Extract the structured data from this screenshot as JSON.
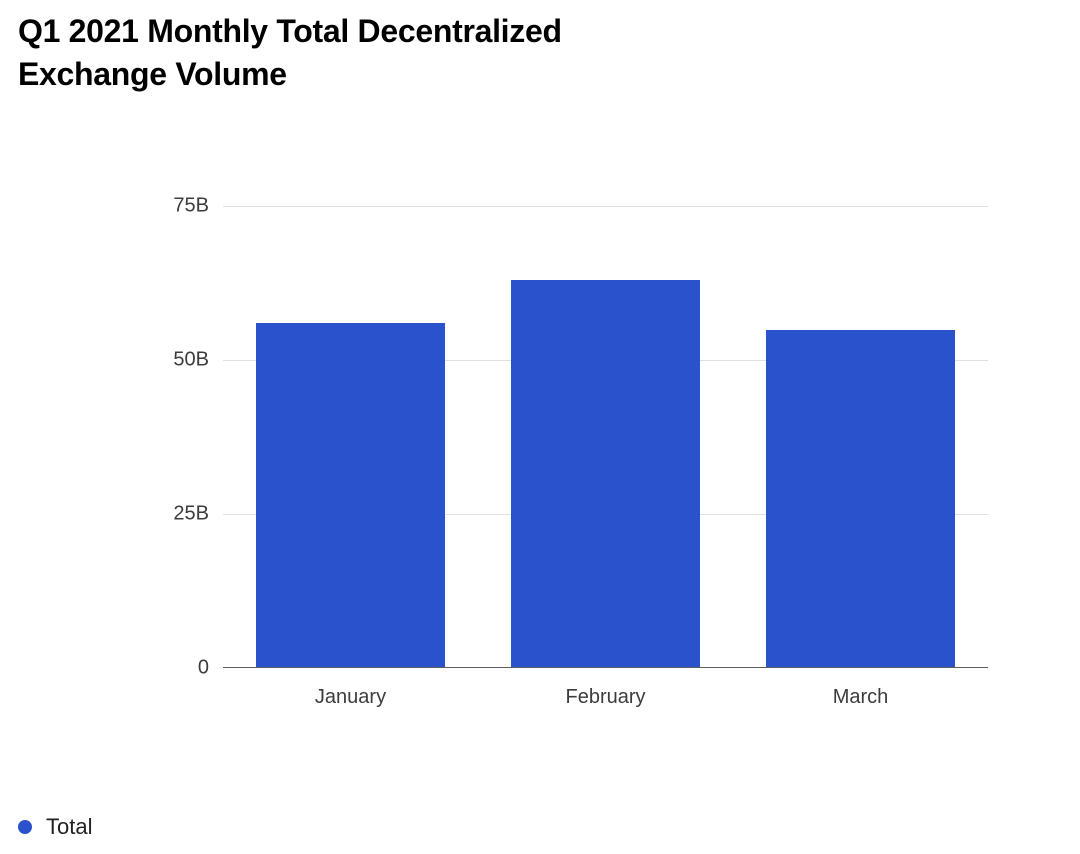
{
  "chart": {
    "type": "bar",
    "title": "Q1 2021 Monthly Total Decentralized Exchange Volume",
    "title_fontsize": 32,
    "title_color": "#000000",
    "categories": [
      "January",
      "February",
      "March"
    ],
    "values": [
      56,
      63,
      55
    ],
    "bar_colors": [
      "#2952cc",
      "#2952cc",
      "#2952cc"
    ],
    "bar_width": 0.74,
    "ymin": 0,
    "ymax": 75,
    "yticks": [
      0,
      25,
      50,
      75
    ],
    "ytick_labels": [
      "0",
      "25B",
      "50B",
      "75B"
    ],
    "ytick_fontsize": 20,
    "ytick_color": "#3c3c3c",
    "xlabel_fontsize": 20,
    "xlabel_color": "#3c3c3c",
    "grid_color": "#e0e0e0",
    "axis_color": "#5e5e5e",
    "background_color": "#ffffff"
  },
  "legend": {
    "items": [
      {
        "label": "Total",
        "color": "#2952cc"
      }
    ],
    "label_fontsize": 22,
    "dot_size": 14
  }
}
